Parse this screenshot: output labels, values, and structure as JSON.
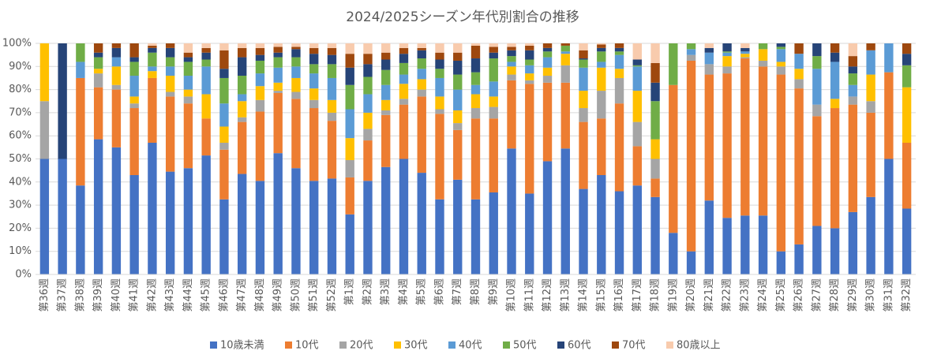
{
  "chart_data": {
    "type": "stacked_bar_100",
    "title": "2024/2025シーズン年代別割合の推移",
    "categories": [
      "第36週",
      "第37週",
      "第38週",
      "第39週",
      "第40週",
      "第41週",
      "第42週",
      "第43週",
      "第44週",
      "第45週",
      "第46週",
      "第47週",
      "第48週",
      "第49週",
      "第50週",
      "第51週",
      "第52週",
      "第1週",
      "第2週",
      "第3週",
      "第4週",
      "第5週",
      "第6週",
      "第7週",
      "第8週",
      "第9週",
      "第10週",
      "第11週",
      "第12週",
      "第13週",
      "第14週",
      "第15週",
      "第16週",
      "第17週",
      "第18週",
      "第19週",
      "第20週",
      "第21週",
      "第22週",
      "第23週",
      "第24週",
      "第25週",
      "第26週",
      "第27週",
      "第28週",
      "第29週",
      "第30週",
      "第31週",
      "第32週"
    ],
    "series": [
      {
        "name": "10歳未満",
        "color": "#4472c4",
        "values": [
          50,
          50,
          38.5,
          58.5,
          55,
          43,
          57,
          44.5,
          46,
          51.5,
          32.5,
          43.5,
          40.5,
          52.5,
          46,
          40.5,
          41.5,
          26,
          40.5,
          46.5,
          50,
          44,
          32.5,
          41,
          32.5,
          35.5,
          54.5,
          35,
          49,
          54.5,
          37,
          43,
          36,
          38.5,
          33.5,
          18,
          10,
          32,
          24.5,
          25.5,
          25.5,
          10,
          13,
          21,
          20,
          27,
          33.5,
          50,
          28.5
        ]
      },
      {
        "name": "10代",
        "color": "#ed7d31",
        "values": [
          0,
          0,
          46.5,
          22.5,
          25,
          29,
          28,
          32.5,
          28,
          16,
          21.5,
          22.5,
          30,
          26,
          30,
          31.5,
          25,
          16,
          17.5,
          22.5,
          23.5,
          33,
          37,
          21.5,
          35,
          32,
          29.5,
          47.5,
          34,
          28.5,
          29,
          24.5,
          38,
          17,
          8,
          64,
          82.5,
          54.5,
          62.5,
          68,
          64.5,
          76.5,
          67.5,
          47.5,
          52,
          46.5,
          36.5,
          37.5,
          28.5
        ]
      },
      {
        "name": "20代",
        "color": "#a5a5a5",
        "values": [
          25,
          0,
          0,
          6,
          2,
          2,
          0,
          2,
          3,
          0,
          3,
          2,
          5,
          1,
          3,
          3.5,
          3.5,
          7.5,
          5,
          2,
          2.5,
          3,
          2,
          3,
          4.5,
          5,
          2.5,
          1.5,
          3,
          7.5,
          6,
          12,
          11,
          10.5,
          8.5,
          0,
          2.5,
          4.5,
          3,
          0.5,
          2.5,
          3.5,
          4,
          5,
          0,
          3.5,
          5,
          0,
          0
        ]
      },
      {
        "name": "30代",
        "color": "#ffc000",
        "values": [
          25,
          0,
          0,
          2,
          8,
          3,
          3,
          7,
          3,
          10.5,
          7,
          7,
          6,
          3.5,
          6,
          5,
          5.5,
          9.5,
          7,
          4.5,
          6.5,
          4.5,
          5.5,
          5.5,
          6,
          4.5,
          3.5,
          3,
          3.5,
          5,
          7.5,
          10,
          4,
          13.5,
          8.5,
          0,
          0,
          0,
          4.5,
          1.5,
          5,
          2,
          4.5,
          0,
          4,
          0,
          11.5,
          0,
          24
        ]
      },
      {
        "name": "40代",
        "color": "#5b9bd5",
        "values": [
          0,
          0,
          7,
          0,
          4,
          9,
          2,
          4,
          6,
          12,
          10,
          3,
          5.5,
          6.5,
          5,
          6.5,
          9.5,
          12.5,
          8,
          6.5,
          4,
          4.5,
          8,
          9,
          4,
          6.5,
          2,
          3.5,
          4.5,
          1,
          10,
          2.5,
          6,
          10.5,
          0,
          0,
          2.5,
          5,
          1.5,
          1,
          0,
          5.5,
          6.5,
          15.5,
          16,
          5,
          10.5,
          12.5,
          0
        ]
      },
      {
        "name": "50代",
        "color": "#70ad47",
        "values": [
          0,
          0,
          8,
          5,
          0,
          6,
          6,
          4,
          6,
          3,
          11,
          8,
          5.5,
          4.5,
          4,
          4,
          6,
          10.5,
          7.5,
          6.5,
          5,
          4.5,
          4,
          6.5,
          5.5,
          10,
          2.5,
          2.5,
          2.5,
          2.5,
          3.5,
          4.5,
          1.5,
          0.5,
          16.5,
          18,
          2.5,
          0,
          0.5,
          0,
          2.5,
          1,
          0,
          5.5,
          0,
          5,
          0,
          0,
          9.5
        ]
      },
      {
        "name": "60代",
        "color": "#264478",
        "values": [
          0,
          50,
          0,
          2,
          4,
          2,
          2,
          4,
          2,
          3,
          4,
          8,
          2.5,
          2,
          3.5,
          4.5,
          4,
          7.5,
          5.5,
          4.5,
          4,
          3.5,
          4,
          6,
          6,
          2.5,
          2.5,
          4,
          1.5,
          0,
          0.5,
          1.5,
          1.5,
          2.5,
          8,
          0,
          0,
          2,
          3.5,
          1.5,
          0,
          1.5,
          0,
          5.5,
          4,
          3,
          0,
          0,
          5
        ]
      },
      {
        "name": "70代",
        "color": "#9e480e",
        "values": [
          0,
          0,
          0,
          4,
          2,
          6,
          1,
          2,
          2,
          2,
          8,
          4,
          3,
          2.5,
          1,
          2.5,
          3,
          6,
          4.5,
          3,
          2.5,
          1,
          3,
          3.5,
          5.5,
          2.5,
          1.5,
          2,
          2,
          1,
          3.5,
          1.5,
          2,
          0,
          8.5,
          0,
          0,
          0,
          0,
          0,
          0,
          0,
          4.5,
          0,
          4,
          4.5,
          3,
          0,
          4.5
        ]
      },
      {
        "name": "80歳以上",
        "color": "#f8cbad",
        "values": [
          0,
          0,
          0,
          0,
          0,
          0,
          1,
          0,
          4,
          2,
          3,
          2,
          2,
          1.5,
          1.5,
          2,
          2,
          4.5,
          4.5,
          4,
          2,
          2,
          4,
          4,
          1,
          1.5,
          1.5,
          1,
          0,
          0,
          3,
          0.5,
          0,
          7,
          8.5,
          0,
          0,
          2,
          0,
          2,
          0,
          0,
          0,
          0,
          0,
          5.5,
          0,
          0,
          0
        ]
      }
    ],
    "ylim": [
      0,
      100
    ],
    "yticks": [
      {
        "value": 0,
        "label": "0%"
      },
      {
        "value": 10,
        "label": "10%"
      },
      {
        "value": 20,
        "label": "20%"
      },
      {
        "value": 30,
        "label": "30%"
      },
      {
        "value": 40,
        "label": "40%"
      },
      {
        "value": 50,
        "label": "50%"
      },
      {
        "value": 60,
        "label": "60%"
      },
      {
        "value": 70,
        "label": "70%"
      },
      {
        "value": 80,
        "label": "80%"
      },
      {
        "value": 90,
        "label": "90%"
      },
      {
        "value": 100,
        "label": "100%"
      }
    ],
    "grid": true,
    "legend": "bottom"
  }
}
